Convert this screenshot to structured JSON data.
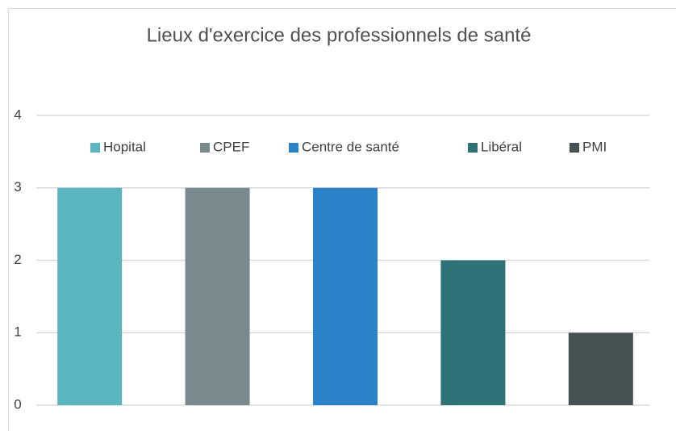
{
  "chart_data": {
    "type": "bar",
    "title": "Lieux d'exercice des professionnels de santé",
    "categories": [
      "Hopital",
      "CPEF",
      "Centre de santé",
      "Libéral",
      "PMI"
    ],
    "values": [
      3,
      3,
      3,
      2,
      1
    ],
    "colors": [
      "#5bb5c0",
      "#788a8d",
      "#2a83c9",
      "#2e7276",
      "#465154"
    ],
    "ylim": [
      0,
      4
    ],
    "yticks": [
      0,
      1,
      2,
      3,
      4
    ],
    "grid": true,
    "legend": "top"
  }
}
